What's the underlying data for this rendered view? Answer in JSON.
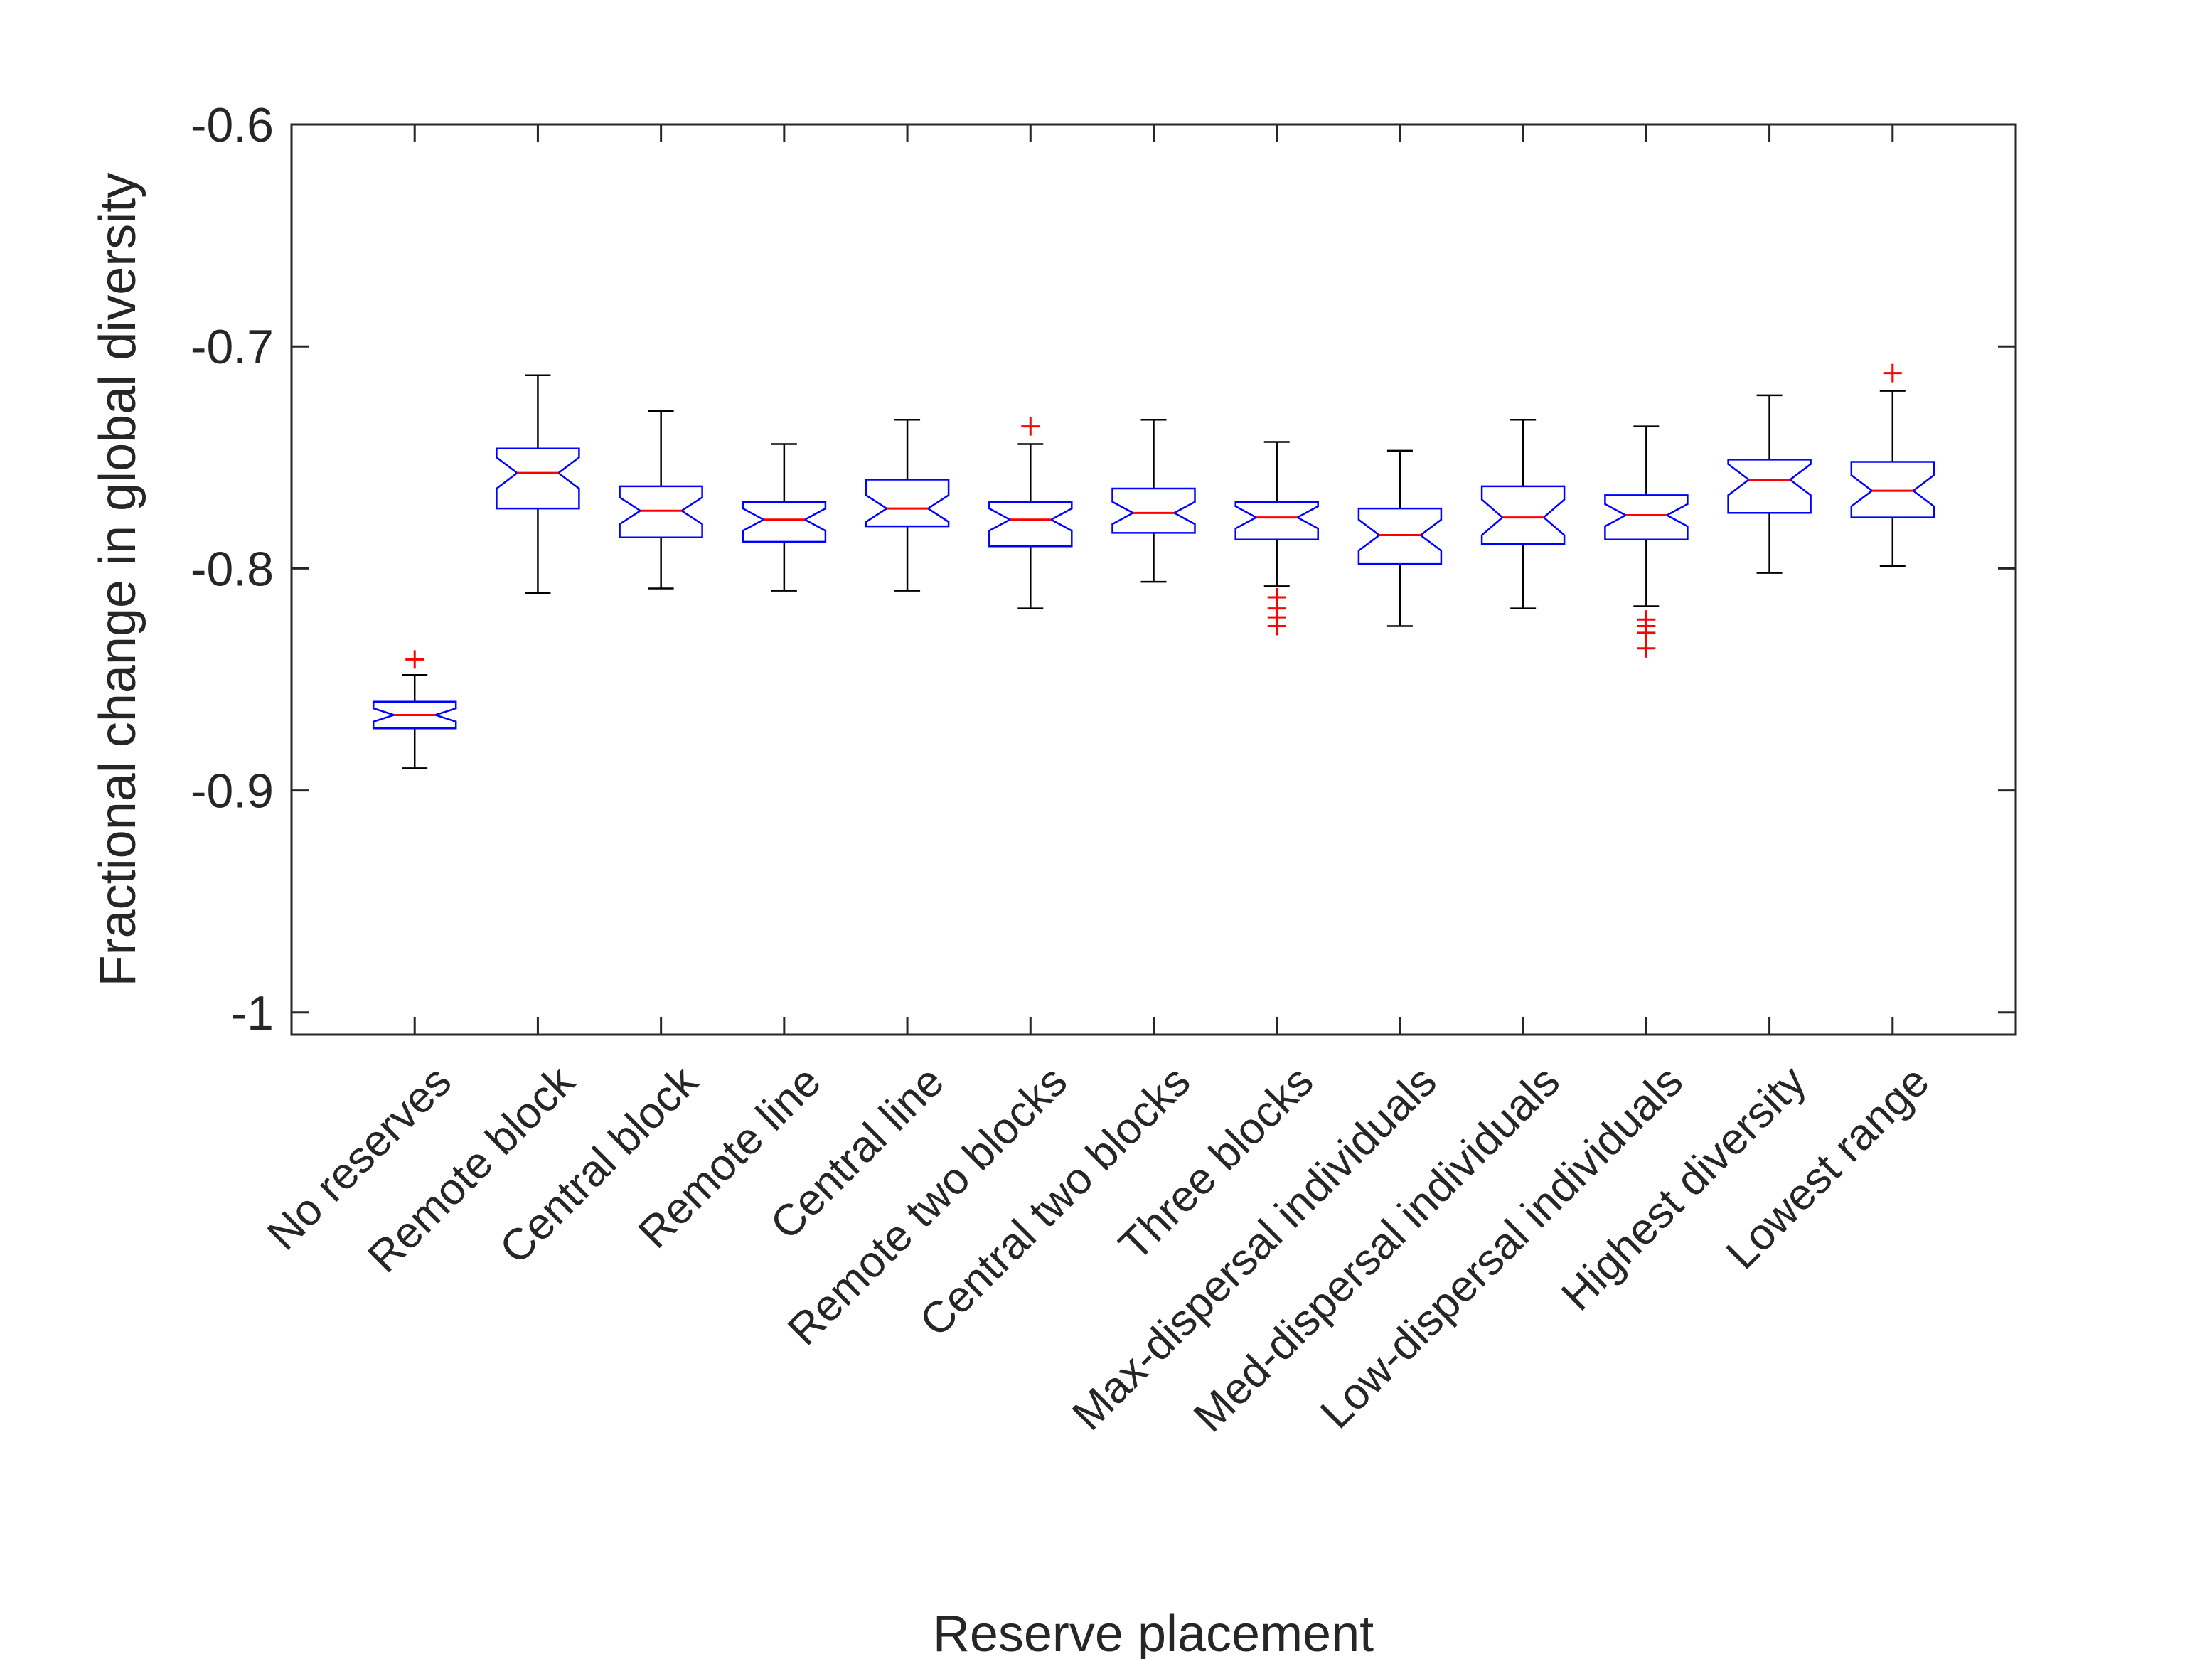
{
  "chart_data": {
    "type": "boxplot",
    "title": "",
    "xlabel": "Reserve placement",
    "ylabel": "Fractional change in global diversity",
    "ylim": [
      -1.01,
      -0.6
    ],
    "yticks": [
      -1,
      -0.9,
      -0.8,
      -0.7,
      -0.6
    ],
    "ytick_labels": [
      "-1",
      "-0.9",
      "-0.8",
      "-0.7",
      "-0.6"
    ],
    "grid": false,
    "notched": true,
    "categories": [
      "No reserves",
      "Remote block",
      "Central block",
      "Remote line",
      "Central line",
      "Remote two blocks",
      "Central two blocks",
      "Three blocks",
      "Max-dispersal individuals",
      "Med-dispersal individuals",
      "Low-dispersal individuals",
      "Highest diversity",
      "Lowest range"
    ],
    "boxes": [
      {
        "whisker_low": -0.89,
        "q1": -0.872,
        "median": -0.866,
        "q3": -0.86,
        "whisker_high": -0.848,
        "notch_low": -0.869,
        "notch_high": -0.863,
        "outliers": [
          -0.841
        ]
      },
      {
        "whisker_low": -0.811,
        "q1": -0.773,
        "median": -0.757,
        "q3": -0.746,
        "whisker_high": -0.713,
        "notch_low": -0.764,
        "notch_high": -0.75,
        "outliers": []
      },
      {
        "whisker_low": -0.809,
        "q1": -0.786,
        "median": -0.774,
        "q3": -0.763,
        "whisker_high": -0.729,
        "notch_low": -0.78,
        "notch_high": -0.768,
        "outliers": []
      },
      {
        "whisker_low": -0.81,
        "q1": -0.788,
        "median": -0.778,
        "q3": -0.77,
        "whisker_high": -0.744,
        "notch_low": -0.783,
        "notch_high": -0.773,
        "outliers": []
      },
      {
        "whisker_low": -0.81,
        "q1": -0.781,
        "median": -0.773,
        "q3": -0.76,
        "whisker_high": -0.733,
        "notch_low": -0.779,
        "notch_high": -0.767,
        "outliers": []
      },
      {
        "whisker_low": -0.818,
        "q1": -0.79,
        "median": -0.778,
        "q3": -0.77,
        "whisker_high": -0.744,
        "notch_low": -0.783,
        "notch_high": -0.773,
        "outliers": [
          -0.736
        ]
      },
      {
        "whisker_low": -0.806,
        "q1": -0.784,
        "median": -0.775,
        "q3": -0.764,
        "whisker_high": -0.733,
        "notch_low": -0.78,
        "notch_high": -0.77,
        "outliers": []
      },
      {
        "whisker_low": -0.808,
        "q1": -0.787,
        "median": -0.777,
        "q3": -0.77,
        "whisker_high": -0.743,
        "notch_low": -0.782,
        "notch_high": -0.772,
        "outliers": [
          -0.813,
          -0.818,
          -0.822,
          -0.826
        ]
      },
      {
        "whisker_low": -0.826,
        "q1": -0.798,
        "median": -0.785,
        "q3": -0.773,
        "whisker_high": -0.747,
        "notch_low": -0.792,
        "notch_high": -0.778,
        "outliers": []
      },
      {
        "whisker_low": -0.818,
        "q1": -0.789,
        "median": -0.777,
        "q3": -0.763,
        "whisker_high": -0.733,
        "notch_low": -0.785,
        "notch_high": -0.769,
        "outliers": []
      },
      {
        "whisker_low": -0.817,
        "q1": -0.787,
        "median": -0.776,
        "q3": -0.767,
        "whisker_high": -0.736,
        "notch_low": -0.781,
        "notch_high": -0.771,
        "outliers": [
          -0.823,
          -0.826,
          -0.829,
          -0.836
        ]
      },
      {
        "whisker_low": -0.802,
        "q1": -0.775,
        "median": -0.76,
        "q3": -0.751,
        "whisker_high": -0.722,
        "notch_low": -0.767,
        "notch_high": -0.753,
        "outliers": []
      },
      {
        "whisker_low": -0.799,
        "q1": -0.777,
        "median": -0.765,
        "q3": -0.752,
        "whisker_high": -0.72,
        "notch_low": -0.772,
        "notch_high": -0.758,
        "outliers": [
          -0.712
        ]
      }
    ],
    "colors": {
      "box": "#0000ff",
      "median": "#ff0000",
      "whisker": "#000000",
      "outlier": "#ff0000",
      "axis": "#262626"
    }
  }
}
